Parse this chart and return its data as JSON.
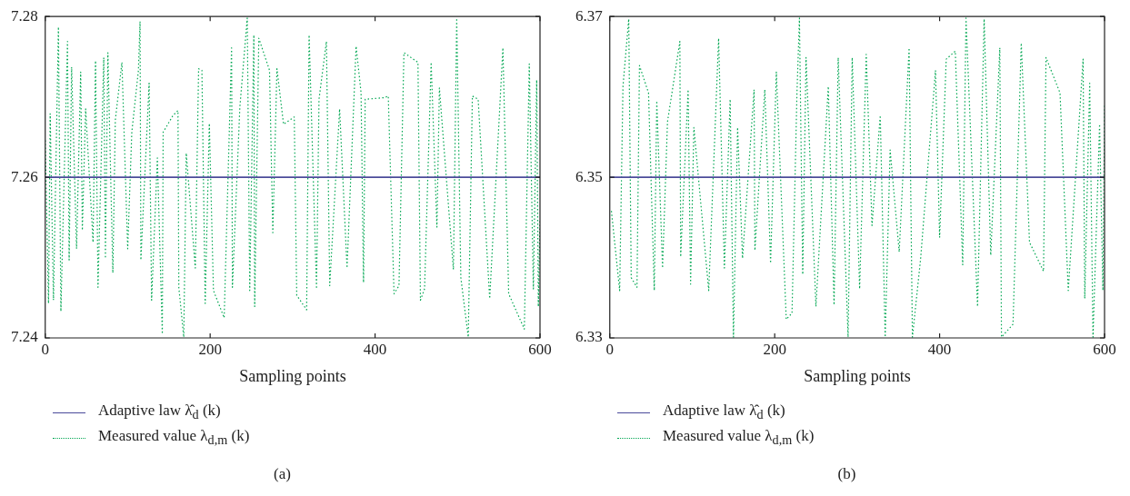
{
  "chart_data": [
    {
      "type": "line",
      "xlabel": "Sampling points",
      "xlim": [
        0,
        600
      ],
      "xticks": [
        0,
        200,
        400,
        600
      ],
      "ylim": [
        7.24,
        7.28
      ],
      "yticks": [
        7.24,
        7.26,
        7.28
      ],
      "legend": "bottom",
      "annotations": [
        "(a)"
      ],
      "series": [
        {
          "name": "Adaptive law λ̂$_{d}$ (k)",
          "color": "#4b4b9a",
          "line_style": "solid",
          "x": [
            0,
            600
          ],
          "values": [
            7.26,
            7.26
          ]
        },
        {
          "name": "Measured value λ$_{d,m}$ (k)",
          "color": "#00a651",
          "line_style": "dotted",
          "x": [
            0,
            4,
            6,
            10,
            16,
            19,
            27,
            29,
            32,
            38,
            43,
            45,
            49,
            58,
            61,
            64,
            71,
            73,
            76,
            82,
            85,
            93,
            100,
            105,
            113,
            115,
            116,
            126,
            129,
            136,
            142,
            143,
            155,
            161,
            162,
            168,
            171,
            182,
            186,
            190,
            194,
            199,
            204,
            217,
            226,
            227,
            236,
            245,
            248,
            253,
            254,
            259,
            272,
            276,
            281,
            289,
            302,
            305,
            317,
            320,
            329,
            332,
            341,
            345,
            357,
            366,
            377,
            383,
            386,
            388,
            411,
            416,
            423,
            429,
            435,
            452,
            455,
            460,
            468,
            475,
            478,
            495,
            499,
            504,
            513,
            518,
            525,
            539,
            555,
            562,
            581,
            587,
            592,
            596,
            598,
            600
          ],
          "values": [
            7.2646,
            7.2443,
            7.2679,
            7.2447,
            7.2787,
            7.2433,
            7.2769,
            7.2497,
            7.2737,
            7.2511,
            7.2731,
            7.2534,
            7.2685,
            7.2519,
            7.2745,
            7.2463,
            7.2749,
            7.2499,
            7.2755,
            7.2481,
            7.2671,
            7.2743,
            7.2511,
            7.2656,
            7.2733,
            7.2794,
            7.2497,
            7.2717,
            7.2447,
            7.2624,
            7.2405,
            7.2656,
            7.2677,
            7.2683,
            7.2463,
            7.2401,
            7.263,
            7.2487,
            7.2735,
            7.2733,
            7.2443,
            7.2667,
            7.2459,
            7.2425,
            7.2761,
            7.2463,
            7.2687,
            7.2798,
            7.2459,
            7.2777,
            7.2439,
            7.2773,
            7.2733,
            7.2531,
            7.2735,
            7.2666,
            7.2675,
            7.2453,
            7.2435,
            7.2777,
            7.2461,
            7.2697,
            7.2769,
            7.2465,
            7.2685,
            7.2487,
            7.2763,
            7.2705,
            7.2469,
            7.2697,
            7.2699,
            7.2701,
            7.2455,
            7.2465,
            7.2755,
            7.2743,
            7.2447,
            7.2461,
            7.2743,
            7.2538,
            7.2711,
            7.2485,
            7.2798,
            7.2475,
            7.2401,
            7.2701,
            7.2697,
            7.2449,
            7.2761,
            7.2455,
            7.2411,
            7.2741,
            7.2461,
            7.2721,
            7.2439,
            7.2546
          ]
        }
      ]
    },
    {
      "type": "line",
      "xlabel": "Sampling points",
      "xlim": [
        0,
        600
      ],
      "xticks": [
        0,
        200,
        400,
        600
      ],
      "ylim": [
        6.33,
        6.37
      ],
      "yticks": [
        6.33,
        6.35,
        6.37
      ],
      "legend": "bottom",
      "annotations": [
        "(b)"
      ],
      "series": [
        {
          "name": "Adaptive law λ̂$_{d}$ (k)",
          "color": "#4b4b9a",
          "line_style": "solid",
          "x": [
            0,
            600
          ],
          "values": [
            6.35,
            6.35
          ]
        },
        {
          "name": "Measured value λ$_{d,m}$ (k)",
          "color": "#00a651",
          "line_style": "dotted",
          "x": [
            2,
            12,
            16,
            23,
            26,
            33,
            36,
            47,
            54,
            57,
            64,
            70,
            85,
            86,
            95,
            98,
            102,
            120,
            132,
            139,
            146,
            150,
            155,
            161,
            175,
            176,
            188,
            195,
            202,
            214,
            221,
            227,
            230,
            234,
            238,
            250,
            265,
            272,
            277,
            289,
            294,
            303,
            311,
            318,
            328,
            334,
            340,
            351,
            363,
            367,
            377,
            395,
            400,
            408,
            419,
            428,
            432,
            446,
            454,
            462,
            473,
            475,
            489,
            499,
            509,
            526,
            529,
            546,
            556,
            574,
            576,
            582,
            586,
            594,
            598,
            600
          ],
          "values": [
            6.3458,
            6.3359,
            6.3613,
            6.3697,
            6.3375,
            6.3363,
            6.3639,
            6.3605,
            6.3359,
            6.3595,
            6.3387,
            6.3569,
            6.3669,
            6.3401,
            6.3609,
            6.3367,
            6.3562,
            6.3359,
            6.3673,
            6.3387,
            6.3597,
            6.3301,
            6.3562,
            6.3399,
            6.3609,
            6.3409,
            6.3609,
            6.3393,
            6.3631,
            6.3323,
            6.3331,
            6.3605,
            6.3698,
            6.3379,
            6.3649,
            6.3339,
            6.3613,
            6.3341,
            6.3649,
            6.3301,
            6.3649,
            6.3361,
            6.3653,
            6.344,
            6.3577,
            6.3301,
            6.3534,
            6.3407,
            6.3661,
            6.3301,
            6.3399,
            6.3633,
            6.3425,
            6.3647,
            6.3657,
            6.3391,
            6.3698,
            6.3339,
            6.3697,
            6.3403,
            6.3661,
            6.3301,
            6.3317,
            6.3667,
            6.3419,
            6.3383,
            6.3649,
            6.3605,
            6.3359,
            6.3647,
            6.3349,
            6.3617,
            6.3301,
            6.3566,
            6.3359,
            6.3589
          ]
        }
      ]
    }
  ]
}
